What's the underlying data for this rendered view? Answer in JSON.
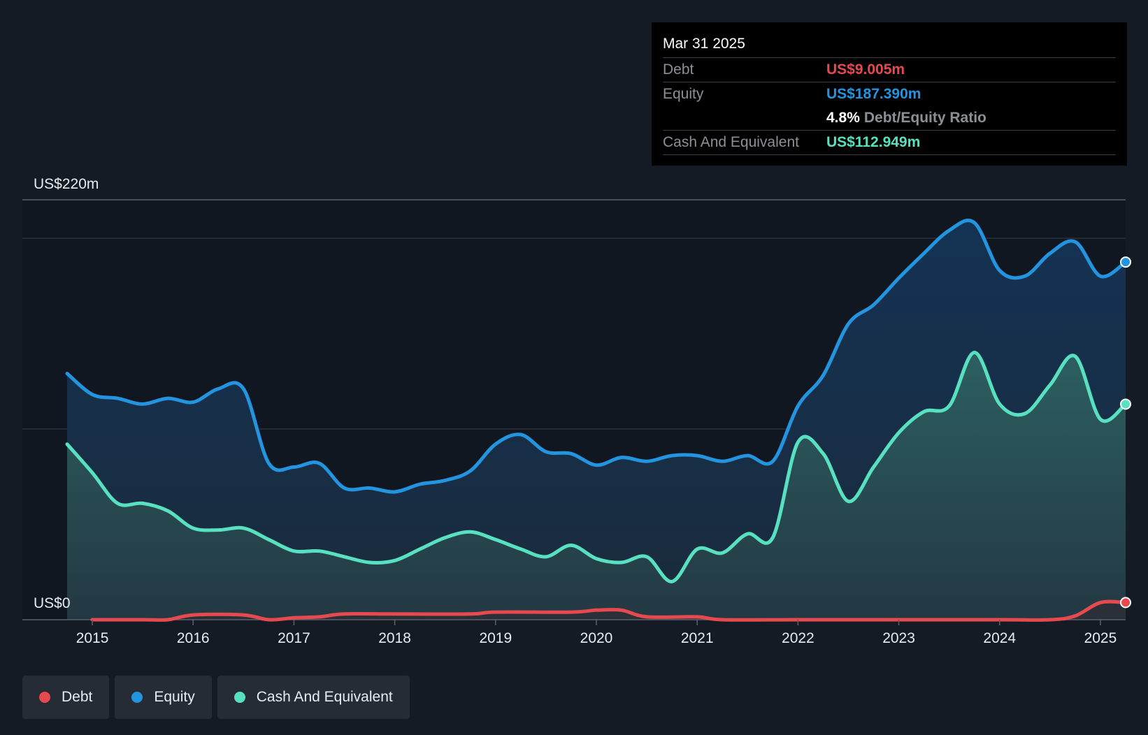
{
  "chart_data": {
    "type": "area",
    "y_axis_top_label": "US$220m",
    "y_axis_bottom_label": "US$0",
    "ylim": [
      0,
      220
    ],
    "xlim": [
      2014.75,
      2025.25
    ],
    "x_ticks": [
      "2015",
      "2016",
      "2017",
      "2018",
      "2019",
      "2020",
      "2021",
      "2022",
      "2023",
      "2024",
      "2025"
    ],
    "series": [
      {
        "name": "Equity",
        "color": "#2394df",
        "points": [
          [
            2014.75,
            129
          ],
          [
            2015.0,
            118
          ],
          [
            2015.25,
            116
          ],
          [
            2015.5,
            113
          ],
          [
            2015.75,
            116
          ],
          [
            2016.0,
            114
          ],
          [
            2016.25,
            121
          ],
          [
            2016.5,
            121
          ],
          [
            2016.75,
            82
          ],
          [
            2017.0,
            80
          ],
          [
            2017.25,
            82
          ],
          [
            2017.5,
            69
          ],
          [
            2017.75,
            69
          ],
          [
            2018.0,
            67
          ],
          [
            2018.25,
            71
          ],
          [
            2018.5,
            73
          ],
          [
            2018.75,
            78
          ],
          [
            2019.0,
            92
          ],
          [
            2019.25,
            97
          ],
          [
            2019.5,
            88
          ],
          [
            2019.75,
            87
          ],
          [
            2020.0,
            81
          ],
          [
            2020.25,
            85
          ],
          [
            2020.5,
            83
          ],
          [
            2020.75,
            86
          ],
          [
            2021.0,
            86
          ],
          [
            2021.25,
            83
          ],
          [
            2021.5,
            86
          ],
          [
            2021.75,
            83
          ],
          [
            2022.0,
            112
          ],
          [
            2022.25,
            128
          ],
          [
            2022.5,
            155
          ],
          [
            2022.75,
            165
          ],
          [
            2023.0,
            179
          ],
          [
            2023.25,
            192
          ],
          [
            2023.5,
            204
          ],
          [
            2023.75,
            208
          ],
          [
            2024.0,
            183
          ],
          [
            2024.25,
            180
          ],
          [
            2024.5,
            192
          ],
          [
            2024.75,
            198
          ],
          [
            2025.0,
            180
          ],
          [
            2025.25,
            187.39
          ]
        ]
      },
      {
        "name": "Cash And Equivalent",
        "color": "#58e1c1",
        "points": [
          [
            2014.75,
            92
          ],
          [
            2015.0,
            77
          ],
          [
            2015.25,
            61
          ],
          [
            2015.5,
            61
          ],
          [
            2015.75,
            57
          ],
          [
            2016.0,
            48
          ],
          [
            2016.25,
            47
          ],
          [
            2016.5,
            48
          ],
          [
            2016.75,
            42
          ],
          [
            2017.0,
            36
          ],
          [
            2017.25,
            36
          ],
          [
            2017.5,
            33
          ],
          [
            2017.75,
            30
          ],
          [
            2018.0,
            31
          ],
          [
            2018.25,
            37
          ],
          [
            2018.5,
            43
          ],
          [
            2018.75,
            46
          ],
          [
            2019.0,
            42
          ],
          [
            2019.25,
            37
          ],
          [
            2019.5,
            33
          ],
          [
            2019.75,
            39
          ],
          [
            2020.0,
            32
          ],
          [
            2020.25,
            30
          ],
          [
            2020.5,
            33
          ],
          [
            2020.75,
            20
          ],
          [
            2021.0,
            37
          ],
          [
            2021.25,
            35
          ],
          [
            2021.5,
            45
          ],
          [
            2021.75,
            43
          ],
          [
            2022.0,
            93
          ],
          [
            2022.25,
            87
          ],
          [
            2022.5,
            62
          ],
          [
            2022.75,
            80
          ],
          [
            2023.0,
            98
          ],
          [
            2023.25,
            109
          ],
          [
            2023.5,
            112
          ],
          [
            2023.75,
            140
          ],
          [
            2024.0,
            113
          ],
          [
            2024.25,
            108
          ],
          [
            2024.5,
            123
          ],
          [
            2024.75,
            138
          ],
          [
            2025.0,
            105
          ],
          [
            2025.25,
            112.949
          ]
        ]
      },
      {
        "name": "Debt",
        "color": "#e64a4f",
        "points": [
          [
            2015.0,
            0
          ],
          [
            2015.5,
            0
          ],
          [
            2015.75,
            0
          ],
          [
            2016.0,
            2.5
          ],
          [
            2016.5,
            2.5
          ],
          [
            2016.75,
            0
          ],
          [
            2017.0,
            1
          ],
          [
            2017.25,
            1.5
          ],
          [
            2017.5,
            3
          ],
          [
            2018.0,
            3
          ],
          [
            2018.75,
            3
          ],
          [
            2019.0,
            4
          ],
          [
            2019.75,
            4
          ],
          [
            2020.0,
            5
          ],
          [
            2020.25,
            5
          ],
          [
            2020.5,
            1.5
          ],
          [
            2021.0,
            1.5
          ],
          [
            2021.25,
            0
          ],
          [
            2022.0,
            0
          ],
          [
            2023.0,
            0
          ],
          [
            2024.0,
            0
          ],
          [
            2024.5,
            0
          ],
          [
            2024.75,
            2
          ],
          [
            2025.0,
            9
          ],
          [
            2025.25,
            9.005
          ]
        ]
      }
    ]
  },
  "tooltip": {
    "date": "Mar 31 2025",
    "debt_label": "Debt",
    "debt_value": "US$9.005m",
    "equity_label": "Equity",
    "equity_value": "US$187.390m",
    "ratio_value": "4.8%",
    "ratio_label": "Debt/Equity Ratio",
    "cash_label": "Cash And Equivalent",
    "cash_value": "US$112.949m"
  },
  "legend": [
    {
      "label": "Debt",
      "color": "#e64a4f"
    },
    {
      "label": "Equity",
      "color": "#2394df"
    },
    {
      "label": "Cash And Equivalent",
      "color": "#58e1c1"
    }
  ]
}
